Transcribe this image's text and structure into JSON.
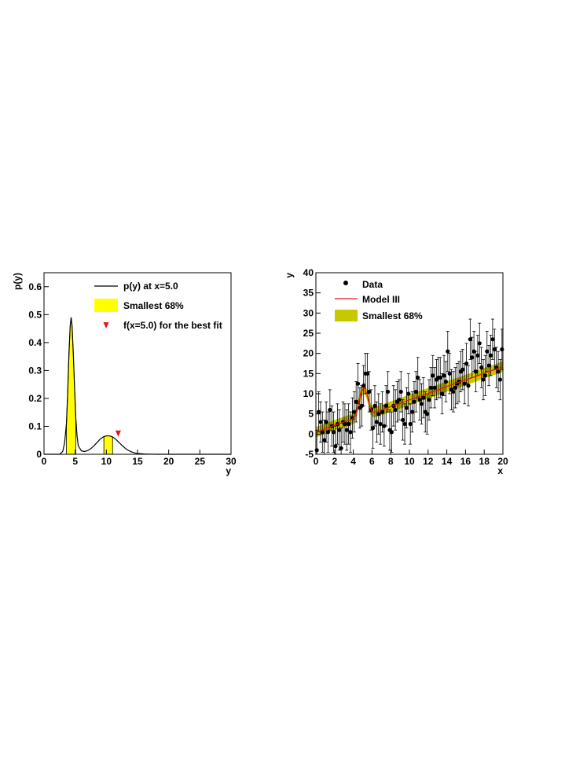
{
  "chart_data": [
    {
      "type": "line",
      "xlabel": "y",
      "ylabel": "p(y)",
      "xlim": [
        0,
        30
      ],
      "ylim": [
        0,
        0.65
      ],
      "xticks": [
        "0",
        "5",
        "10",
        "15",
        "20",
        "25",
        "30"
      ],
      "yticks": [
        "0",
        "0.1",
        "0.2",
        "0.3",
        "0.4",
        "0.5",
        "0.6"
      ],
      "x_tick_values": [
        0,
        5,
        10,
        15,
        20,
        25,
        30
      ],
      "y_tick_values": [
        0,
        0.1,
        0.2,
        0.3,
        0.4,
        0.5,
        0.6
      ],
      "legend_position": "top-right",
      "legend": [
        {
          "label": "p(y) at x=5.0",
          "marker": "line",
          "color": "#000000"
        },
        {
          "label": "Smallest 68%",
          "marker": "box",
          "color": "#ffff00"
        },
        {
          "label": "f(x=5.0) for the best fit",
          "marker": "triangle-down",
          "color": "#e8141e"
        }
      ],
      "series": [
        {
          "name": "p(y) at x=5.0",
          "x": [
            2.5,
            3.0,
            3.3,
            3.6,
            3.8,
            4.0,
            4.2,
            4.35,
            4.5,
            4.7,
            4.9,
            5.1,
            5.3,
            5.5,
            6.0,
            6.5,
            7.0,
            7.5,
            8.0,
            8.5,
            9.0,
            9.5,
            10.0,
            10.5,
            11.0,
            11.5,
            12.0,
            12.5,
            13.0,
            13.5,
            14.0,
            14.5,
            15.0,
            16.0,
            17.0,
            18.0,
            20.0
          ],
          "y": [
            0.0,
            0.01,
            0.04,
            0.11,
            0.22,
            0.36,
            0.46,
            0.49,
            0.46,
            0.36,
            0.24,
            0.13,
            0.065,
            0.03,
            0.012,
            0.01,
            0.013,
            0.02,
            0.03,
            0.042,
            0.054,
            0.062,
            0.066,
            0.066,
            0.062,
            0.054,
            0.043,
            0.032,
            0.022,
            0.014,
            0.009,
            0.005,
            0.003,
            0.001,
            0.0005,
            0.0,
            0.0
          ]
        }
      ],
      "bands": [
        [
          3.6,
          5.1
        ],
        [
          9.6,
          11.0
        ]
      ],
      "band_color": "#ffff00",
      "marker": {
        "x": 11.9,
        "y": 0.074,
        "color": "#e8141e"
      }
    },
    {
      "type": "scatter",
      "xlabel": "x",
      "ylabel": "y",
      "xlim": [
        0,
        20
      ],
      "ylim": [
        -5,
        40
      ],
      "xticks": [
        "0",
        "2",
        "4",
        "6",
        "8",
        "10",
        "12",
        "14",
        "16",
        "18",
        "20"
      ],
      "yticks": [
        "-5",
        "0",
        "5",
        "10",
        "15",
        "20",
        "25",
        "30",
        "35",
        "40"
      ],
      "x_tick_values": [
        0,
        2,
        4,
        6,
        8,
        10,
        12,
        14,
        16,
        18,
        20
      ],
      "y_tick_values": [
        -5,
        0,
        5,
        10,
        15,
        20,
        25,
        30,
        35,
        40
      ],
      "legend_position": "top-left",
      "legend": [
        {
          "label": "Data",
          "marker": "dot",
          "color": "#000000"
        },
        {
          "label": "Model III",
          "marker": "line",
          "color": "#e8141e"
        },
        {
          "label": "Smallest 68%",
          "marker": "box",
          "color": "#c8c800"
        }
      ],
      "error_bar": 5,
      "data": {
        "x": [
          0.1,
          0.3,
          0.5,
          0.7,
          0.9,
          1.1,
          1.3,
          1.5,
          1.7,
          1.9,
          2.1,
          2.3,
          2.5,
          2.7,
          2.9,
          3.1,
          3.3,
          3.5,
          3.7,
          3.9,
          4.1,
          4.3,
          4.5,
          4.7,
          4.9,
          5.1,
          5.3,
          5.5,
          5.7,
          5.9,
          6.1,
          6.3,
          6.5,
          6.7,
          6.9,
          7.1,
          7.3,
          7.5,
          7.7,
          7.9,
          8.1,
          8.3,
          8.5,
          8.7,
          8.9,
          9.1,
          9.3,
          9.5,
          9.7,
          9.9,
          10.1,
          10.3,
          10.5,
          10.7,
          10.9,
          11.1,
          11.3,
          11.5,
          11.7,
          11.9,
          12.1,
          12.3,
          12.5,
          12.7,
          12.9,
          13.1,
          13.3,
          13.5,
          13.7,
          13.9,
          14.1,
          14.3,
          14.5,
          14.7,
          14.9,
          15.1,
          15.3,
          15.5,
          15.7,
          15.9,
          16.1,
          16.3,
          16.5,
          16.7,
          16.9,
          17.1,
          17.3,
          17.5,
          17.7,
          17.9,
          18.1,
          18.3,
          18.5,
          18.7,
          18.9,
          19.1,
          19.3,
          19.5,
          19.7,
          19.9
        ],
        "y": [
          -4.0,
          5.5,
          3.0,
          0.5,
          -1.5,
          3.0,
          0.5,
          6.0,
          2.0,
          0.5,
          -3.0,
          2.5,
          1.0,
          -3.5,
          3.0,
          2.5,
          1.0,
          2.5,
          0.5,
          4.0,
          5.5,
          8.0,
          12.5,
          6.5,
          7.0,
          12.0,
          15.0,
          15.0,
          10.5,
          6.0,
          1.5,
          7.0,
          3.0,
          5.0,
          2.5,
          5.5,
          2.0,
          7.0,
          10.5,
          1.0,
          0.5,
          7.0,
          6.0,
          8.0,
          8.5,
          10.5,
          3.5,
          2.5,
          6.5,
          10.0,
          2.5,
          5.5,
          8.0,
          10.5,
          14.0,
          8.5,
          7.5,
          9.0,
          5.5,
          5.0,
          8.5,
          11.5,
          14.5,
          11.5,
          13.5,
          14.0,
          14.0,
          10.0,
          14.5,
          13.0,
          20.5,
          15.0,
          11.0,
          10.5,
          11.5,
          12.5,
          13.0,
          15.5,
          16.0,
          12.5,
          17.5,
          12.0,
          23.5,
          19.0,
          20.5,
          15.5,
          19.5,
          22.5,
          16.5,
          13.5,
          14.5,
          20.5,
          17.0,
          19.5,
          23.5,
          21.0,
          16.5,
          15.5,
          13.5,
          21.0
        ]
      },
      "model": {
        "name": "Model III",
        "color": "#e8141e",
        "x": [
          0,
          1,
          2,
          3,
          4,
          4.3,
          4.6,
          4.9,
          5.2,
          5.5,
          5.8,
          6.1,
          6.5,
          7,
          8,
          9,
          10,
          11,
          12,
          13,
          14,
          15,
          16,
          17,
          18,
          19,
          20
        ],
        "y": [
          0.5,
          1.3,
          2.2,
          3.0,
          3.8,
          5.0,
          8.0,
          10.7,
          11.5,
          9.5,
          6.5,
          5.4,
          5.6,
          6.0,
          6.8,
          7.6,
          8.5,
          9.3,
          10.1,
          10.9,
          11.8,
          12.6,
          13.4,
          14.2,
          15.1,
          15.9,
          16.7
        ]
      },
      "band_color": "#c8c800",
      "band_halfwidth": 1.3
    }
  ]
}
